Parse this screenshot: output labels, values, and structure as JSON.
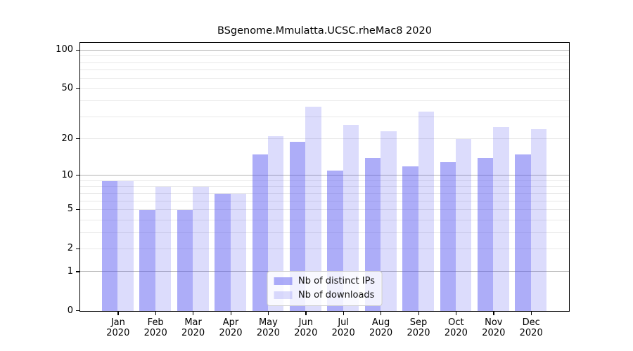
{
  "title": "BSgenome.Mmulatta.UCSC.rheMac8 2020",
  "chart_data": {
    "type": "bar",
    "title": "BSgenome.Mmulatta.UCSC.rheMac8 2020",
    "xlabel": "",
    "ylabel": "",
    "yscale": "log1p",
    "ylim": [
      0,
      112
    ],
    "grid": "on",
    "legend_position": "lower center inside plot",
    "year": "2020",
    "months": [
      "Jan",
      "Feb",
      "Mar",
      "Apr",
      "May",
      "Jun",
      "Jul",
      "Aug",
      "Sep",
      "Oct",
      "Nov",
      "Dec"
    ],
    "categories": [
      "Jan 2020",
      "Feb 2020",
      "Mar 2020",
      "Apr 2020",
      "May 2020",
      "Jun 2020",
      "Jul 2020",
      "Aug 2020",
      "Sep 2020",
      "Oct 2020",
      "Nov 2020",
      "Dec 2020"
    ],
    "series": [
      {
        "name": "Nb of distinct IPs",
        "color": "rgba(80,80,240,0.47)",
        "values": [
          9,
          5,
          5,
          7,
          15,
          19,
          11,
          14,
          12,
          13,
          14,
          15
        ]
      },
      {
        "name": "Nb of downloads",
        "color": "rgba(80,80,240,0.20)",
        "values": [
          9,
          8,
          8,
          7,
          21,
          36,
          26,
          23,
          33,
          20,
          25,
          24
        ]
      }
    ],
    "ytick_labels": [
      "0",
      "1",
      "2",
      "5",
      "10",
      "20",
      "50",
      "100"
    ],
    "ytick_values": [
      0,
      1,
      2,
      5,
      10,
      20,
      50,
      100
    ],
    "major_gridlines": [
      1,
      10,
      100
    ],
    "minor_gridlines": [
      2,
      3,
      4,
      5,
      6,
      7,
      8,
      9,
      20,
      30,
      40,
      50,
      60,
      70,
      80,
      90
    ]
  },
  "colors": {
    "background": "#ffffff",
    "spine": "#000000",
    "grid_major": "#b0b0b0",
    "grid_minor": "#e8e8e8",
    "legend_border": "#cccccc",
    "bar_distinct_ips": "rgba(80,80,240,0.47)",
    "bar_downloads": "rgba(80,80,240,0.20)"
  }
}
